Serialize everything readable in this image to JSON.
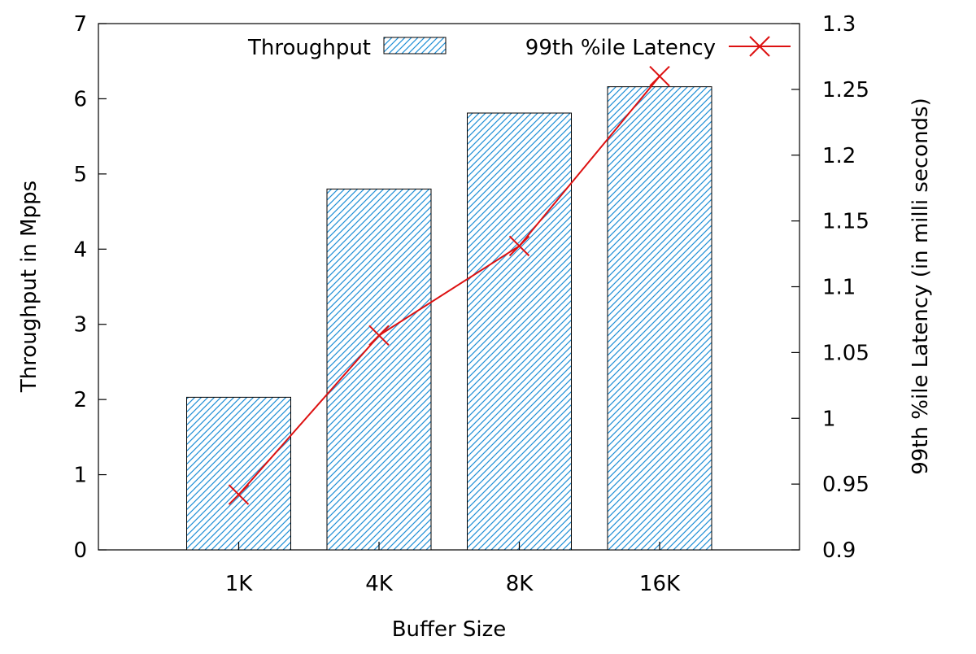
{
  "chart_data": {
    "type": "bar",
    "xlabel": "Buffer Size",
    "ylabel": "Throughput in Mpps",
    "y2label": "99th %ile Latency (in milli seconds)",
    "categories": [
      "1K",
      "4K",
      "8K",
      "16K"
    ],
    "ylim": [
      0,
      7
    ],
    "y2lim": [
      0.9,
      1.3
    ],
    "yticks": [
      "0",
      "1",
      "2",
      "3",
      "4",
      "5",
      "6",
      "7"
    ],
    "y2ticks": [
      "0.9",
      "0.95",
      "1",
      "1.05",
      "1.1",
      "1.15",
      "1.2",
      "1.25",
      "1.3"
    ],
    "grid": false,
    "legend_position": "top",
    "series": [
      {
        "name": "Throughput",
        "kind": "bar",
        "axis": "left",
        "color": "#1f8fd6",
        "pattern": "diagonal-hatch",
        "values": [
          2.03,
          4.8,
          5.81,
          6.16
        ]
      },
      {
        "name": "99th %ile Latency",
        "kind": "line",
        "axis": "right",
        "color": "#dd1111",
        "marker": "x",
        "values": [
          0.942,
          1.063,
          1.131,
          1.26
        ]
      }
    ]
  }
}
